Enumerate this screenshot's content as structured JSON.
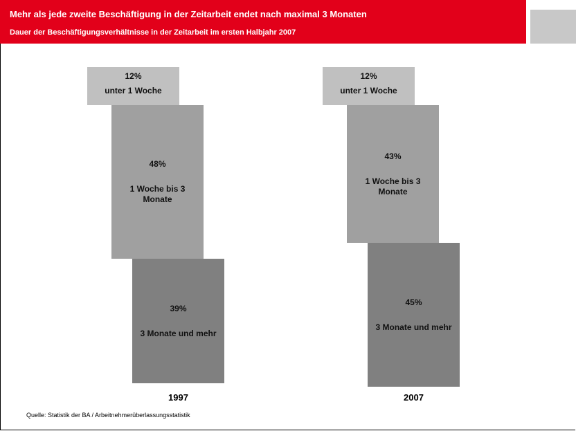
{
  "header": {
    "title": "Mehr als jede zweite Beschäftigung in der Zeitarbeit endet nach maximal 3 Monaten",
    "subtitle": "Dauer der Beschäftigungsverhältnisse in der Zeitarbeit im ersten Halbjahr 2007"
  },
  "chart_data": {
    "type": "step-bar",
    "categories": [
      "unter 1 Woche",
      "1 Woche bis 3 Monate",
      "3 Monate und mehr"
    ],
    "colors": [
      "#c0c0c0",
      "#a0a0a0",
      "#808080"
    ],
    "series": [
      {
        "name": "1997",
        "values": [
          12,
          48,
          39
        ],
        "value_labels": [
          "12%",
          "48%",
          "39%"
        ]
      },
      {
        "name": "2007",
        "values": [
          12,
          43,
          45
        ],
        "value_labels": [
          "12%",
          "43%",
          "45%"
        ]
      }
    ]
  },
  "source": "Quelle: Statistik der BA / Arbeitnehmerüberlassungsstatistik"
}
